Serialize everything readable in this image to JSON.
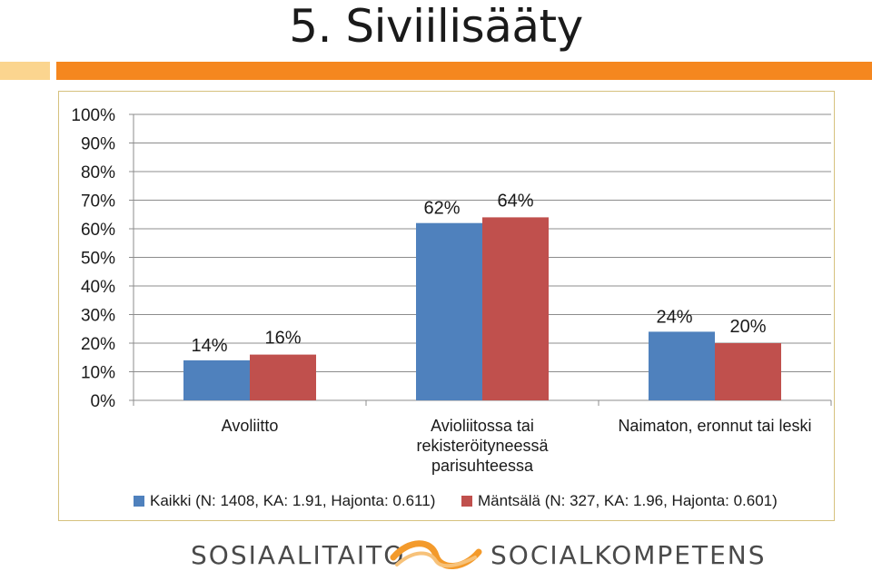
{
  "slide": {
    "title": "5. Siviilisääty"
  },
  "colors": {
    "series1": "#4f81bd",
    "series2": "#c0504d",
    "accent_orange": "#f5871f",
    "accent_light": "#fbd58f"
  },
  "chart_data": {
    "type": "bar",
    "categories": [
      [
        "Avoliitto"
      ],
      [
        "Avioliitossa tai",
        "rekisteröityneessä",
        "parisuhteessa"
      ],
      [
        "Naimaton, eronnut tai leski"
      ]
    ],
    "series": [
      {
        "name": "Kaikki (N: 1408, KA: 1.91, Hajonta: 0.611)",
        "values": [
          14,
          62,
          24
        ],
        "labels": [
          "14%",
          "62%",
          "24%"
        ]
      },
      {
        "name": "Mäntsälä (N: 327, KA: 1.96, Hajonta: 0.601)",
        "values": [
          16,
          64,
          20
        ],
        "labels": [
          "16%",
          "64%",
          "20%"
        ]
      }
    ],
    "ylim": [
      0,
      100
    ],
    "yticks": [
      "0%",
      "10%",
      "20%",
      "30%",
      "40%",
      "50%",
      "60%",
      "70%",
      "80%",
      "90%",
      "100%"
    ],
    "grid": true,
    "legend": "bottom"
  },
  "footer": {
    "left": "SOSIAALITAITO",
    "right": "SOCIALKOMPETENS",
    "logo_icon": "swirl-logo-icon"
  }
}
